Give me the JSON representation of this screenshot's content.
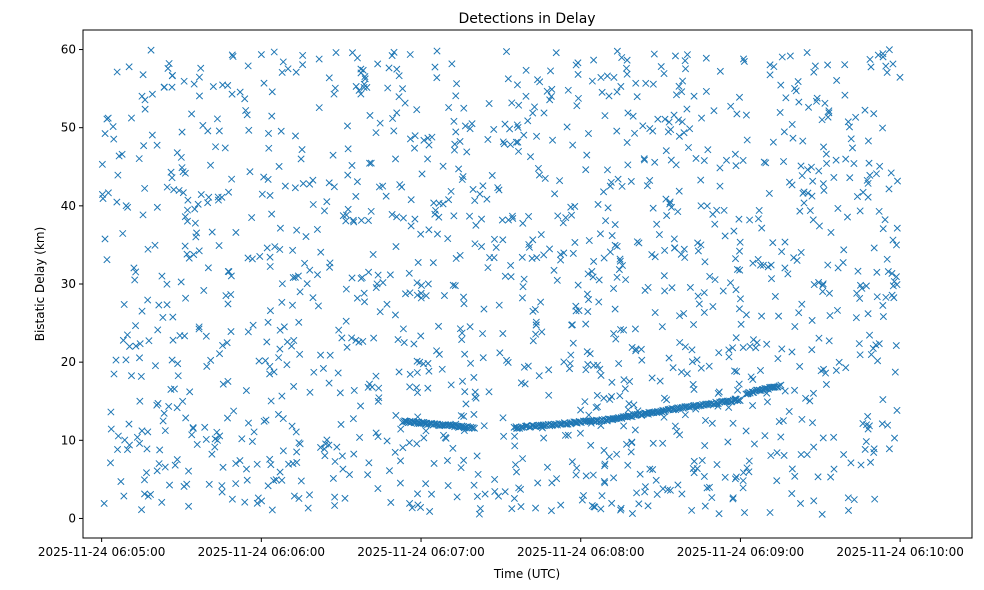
{
  "chart_data": {
    "type": "scatter",
    "title": "Detections in Delay",
    "xlabel": "Time (UTC)",
    "ylabel": "Bistatic Delay (km)",
    "marker": "x",
    "color": "#1f77b4",
    "grid": false,
    "xlim": [
      "2025-11-24 06:04:53",
      "2025-11-24 06:10:27"
    ],
    "ylim": [
      -2.5,
      62.5
    ],
    "x_ticks": [
      "2025-11-24 06:05:00",
      "2025-11-24 06:06:00",
      "2025-11-24 06:07:00",
      "2025-11-24 06:08:00",
      "2025-11-24 06:09:00",
      "2025-11-24 06:10:00"
    ],
    "y_ticks": [
      0,
      10,
      20,
      30,
      40,
      50,
      60
    ],
    "time_range": [
      "2025-11-24 06:05:00",
      "2025-11-24 06:10:00"
    ],
    "noise": {
      "count": 1400,
      "y_range": [
        0.5,
        60
      ]
    },
    "track_segments": [
      {
        "start": [
          "2025-11-24 06:06:53",
          12.4
        ],
        "end": [
          "2025-11-24 06:07:20",
          11.6
        ],
        "count": 60
      },
      {
        "start": [
          "2025-11-24 06:07:35",
          11.6
        ],
        "end": [
          "2025-11-24 06:08:10",
          12.6
        ],
        "count": 70
      },
      {
        "start": [
          "2025-11-24 06:08:10",
          12.6
        ],
        "end": [
          "2025-11-24 06:08:35",
          14.0
        ],
        "count": 55
      },
      {
        "start": [
          "2025-11-24 06:08:35",
          14.0
        ],
        "end": [
          "2025-11-24 06:09:00",
          15.2
        ],
        "count": 50
      },
      {
        "start": [
          "2025-11-24 06:09:02",
          16.0
        ],
        "end": [
          "2025-11-24 06:09:15",
          17.0
        ],
        "count": 30
      }
    ]
  }
}
